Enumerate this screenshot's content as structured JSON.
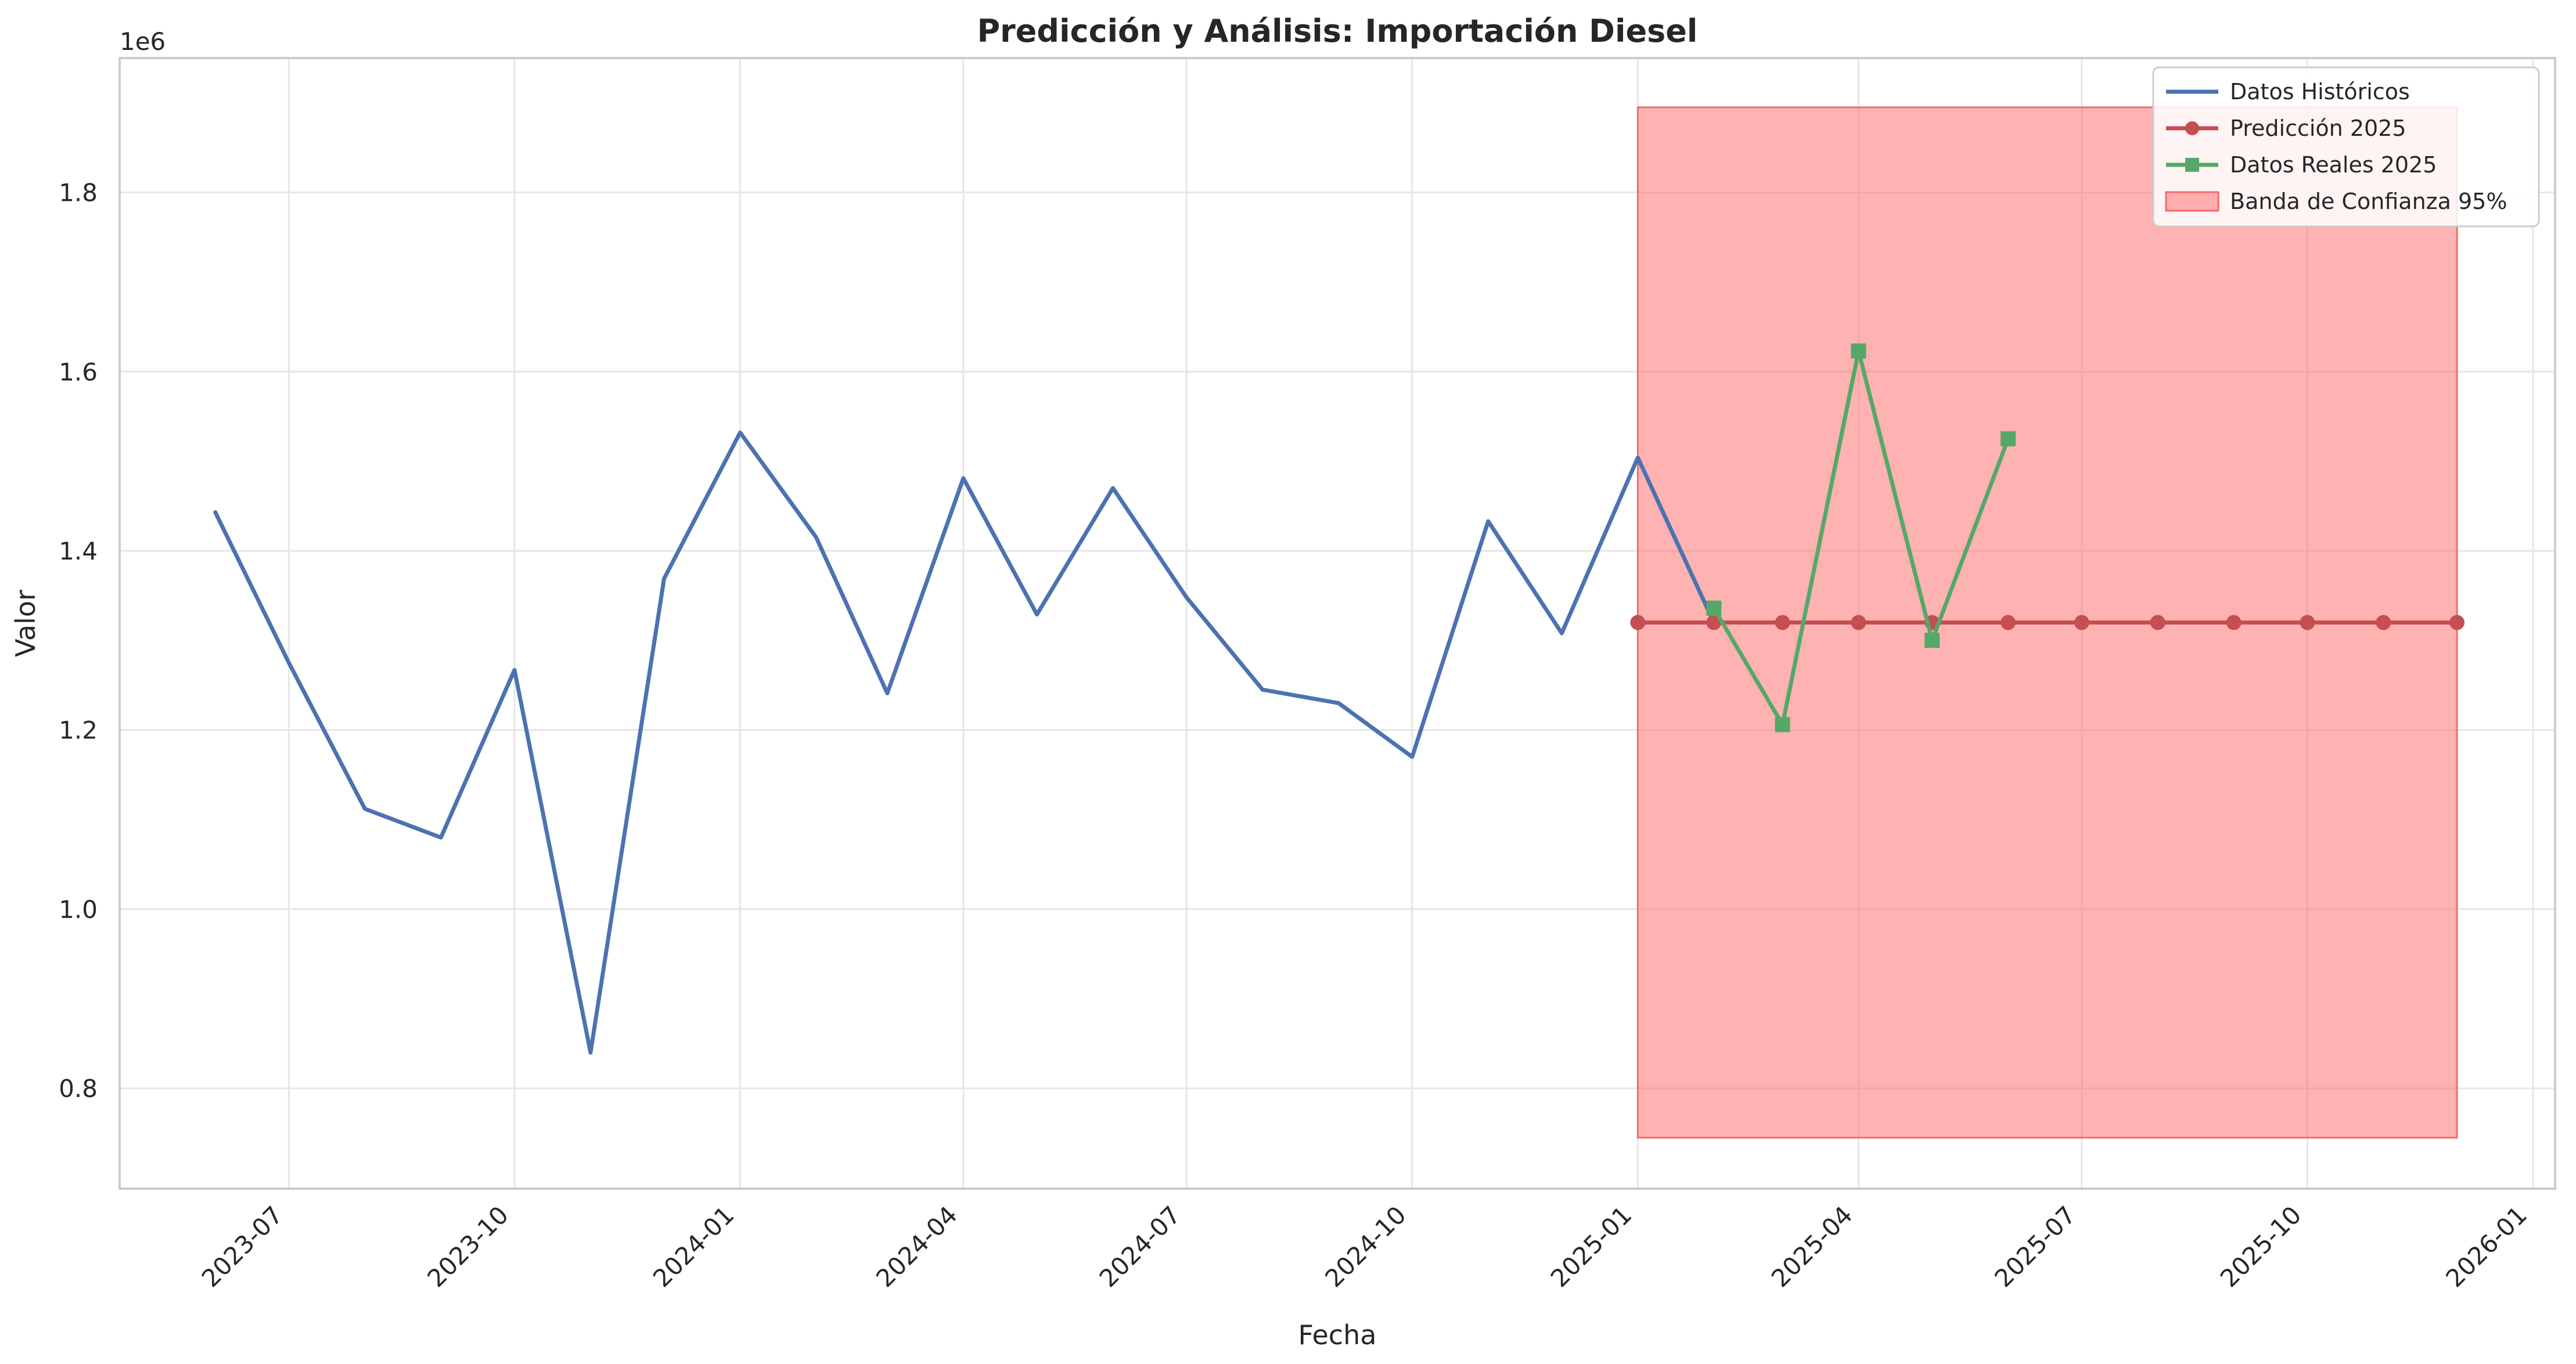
{
  "chart_data": {
    "type": "line",
    "title": "Predicción y Análisis: Importación Diesel",
    "xlabel": "Fecha",
    "ylabel": "Valor",
    "y_offset_label": "1e6",
    "x_axis_type": "date",
    "xlim": [
      "2023-04-23",
      "2026-01-10"
    ],
    "ylim": [
      0.688,
      1.95
    ],
    "y_scale_factor": 1000000,
    "grid": true,
    "legend_position": "upper right",
    "x_ticks": [
      {
        "date": "2023-07-01",
        "label": "2023-07"
      },
      {
        "date": "2023-10-01",
        "label": "2023-10"
      },
      {
        "date": "2024-01-01",
        "label": "2024-01"
      },
      {
        "date": "2024-04-01",
        "label": "2024-04"
      },
      {
        "date": "2024-07-01",
        "label": "2024-07"
      },
      {
        "date": "2024-10-01",
        "label": "2024-10"
      },
      {
        "date": "2025-01-01",
        "label": "2025-01"
      },
      {
        "date": "2025-04-01",
        "label": "2025-04"
      },
      {
        "date": "2025-07-01",
        "label": "2025-07"
      },
      {
        "date": "2025-10-01",
        "label": "2025-10"
      },
      {
        "date": "2026-01-01",
        "label": "2026-01"
      }
    ],
    "y_ticks": [
      {
        "value": 0.8,
        "label": "0.8"
      },
      {
        "value": 1.0,
        "label": "1.0"
      },
      {
        "value": 1.2,
        "label": "1.2"
      },
      {
        "value": 1.4,
        "label": "1.4"
      },
      {
        "value": 1.6,
        "label": "1.6"
      },
      {
        "value": 1.8,
        "label": "1.8"
      }
    ],
    "series": [
      {
        "name": "Datos Históricos",
        "color": "#4c72b0",
        "marker": "none",
        "x": [
          "2023-06-01",
          "2023-07-01",
          "2023-08-01",
          "2023-09-01",
          "2023-10-01",
          "2023-11-01",
          "2023-12-01",
          "2024-01-01",
          "2024-02-01",
          "2024-03-01",
          "2024-04-01",
          "2024-05-01",
          "2024-06-01",
          "2024-07-01",
          "2024-08-01",
          "2024-09-01",
          "2024-10-01",
          "2024-11-01",
          "2024-12-01",
          "2025-01-01",
          "2025-02-01"
        ],
        "y": [
          1.443,
          1.275,
          1.112,
          1.08,
          1.267,
          0.84,
          1.369,
          1.532,
          1.415,
          1.241,
          1.481,
          1.329,
          1.47,
          1.348,
          1.245,
          1.23,
          1.17,
          1.433,
          1.308,
          1.504,
          1.32
        ]
      },
      {
        "name": "Predicción 2025",
        "color": "#c44e52",
        "marker": "circle",
        "x": [
          "2025-01-01",
          "2025-02-01",
          "2025-03-01",
          "2025-04-01",
          "2025-05-01",
          "2025-06-01",
          "2025-07-01",
          "2025-08-01",
          "2025-09-01",
          "2025-10-01",
          "2025-11-01",
          "2025-12-01"
        ],
        "y": [
          1.32,
          1.32,
          1.32,
          1.32,
          1.32,
          1.32,
          1.32,
          1.32,
          1.32,
          1.32,
          1.32,
          1.32
        ]
      },
      {
        "name": "Datos Reales 2025",
        "color": "#55a868",
        "marker": "square",
        "x": [
          "2025-02-01",
          "2025-03-01",
          "2025-04-01",
          "2025-05-01",
          "2025-06-01"
        ],
        "y": [
          1.336,
          1.206,
          1.623,
          1.3,
          1.525
        ]
      }
    ],
    "band": {
      "name": "Banda de Confianza 95%",
      "color": "#ff6b6b",
      "x": [
        "2025-01-01",
        "2025-12-01"
      ],
      "lower": 0.745,
      "upper": 1.895
    }
  }
}
